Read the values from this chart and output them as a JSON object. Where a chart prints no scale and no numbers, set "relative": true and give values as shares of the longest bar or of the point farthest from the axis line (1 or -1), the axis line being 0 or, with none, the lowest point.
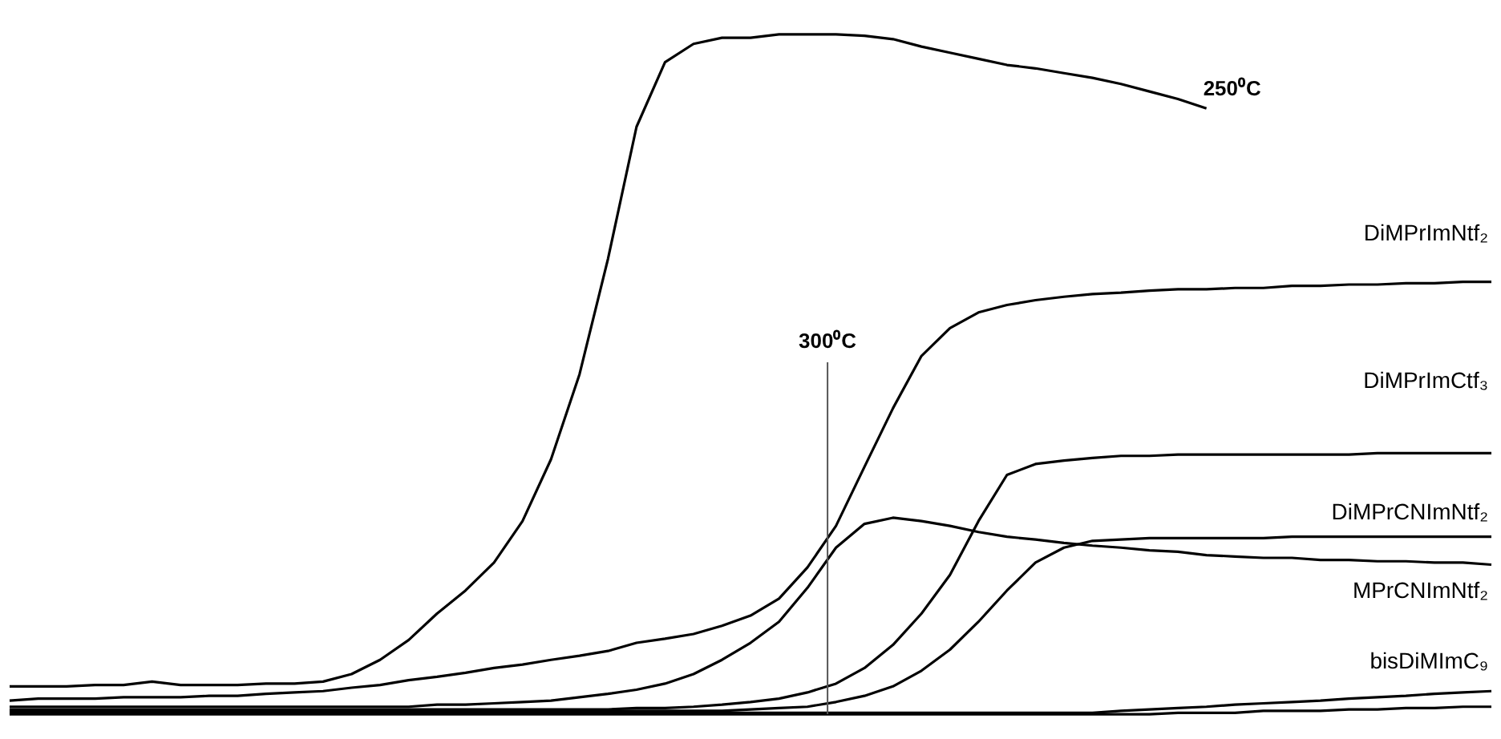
{
  "chart_data": {
    "type": "line",
    "relative": true,
    "categories": [
      null,
      null,
      null,
      null,
      null,
      null,
      null,
      null,
      null,
      null,
      null,
      null,
      null,
      null,
      null,
      null,
      null,
      null,
      null,
      null,
      null,
      null,
      null,
      null,
      null,
      null,
      null,
      null,
      null,
      null,
      null,
      null,
      null,
      null,
      null,
      null,
      null,
      null,
      null,
      null,
      null,
      null,
      null,
      null,
      null,
      null,
      null,
      null,
      null,
      null,
      null,
      null,
      null
    ],
    "series": [
      {
        "color": "#000000",
        "values": [
          0.041,
          0.041,
          0.041,
          0.043,
          0.043,
          0.048,
          0.043,
          0.043,
          0.043,
          0.045,
          0.045,
          0.048,
          0.059,
          0.08,
          0.109,
          0.148,
          0.182,
          0.223,
          0.284,
          0.375,
          0.5,
          0.67,
          0.864,
          0.959,
          0.986,
          0.995,
          0.995,
          1,
          1,
          1,
          0.998,
          0.993,
          0.982,
          0.973,
          0.964,
          0.955,
          0.95,
          0.943,
          0.936,
          0.927,
          0.916,
          0.905,
          0.891,
          null,
          null,
          null,
          null,
          null,
          null,
          null,
          null,
          null,
          null
        ]
      },
      {
        "name": "DiMPrImNtf₂",
        "color": "#000000",
        "values": [
          0.02,
          0.023,
          0.023,
          0.023,
          0.025,
          0.025,
          0.025,
          0.027,
          0.027,
          0.03,
          0.032,
          0.034,
          0.039,
          0.043,
          0.05,
          0.055,
          0.061,
          0.068,
          0.073,
          0.08,
          0.086,
          0.093,
          0.105,
          0.111,
          0.118,
          0.13,
          0.145,
          0.17,
          0.216,
          0.277,
          0.364,
          0.45,
          0.527,
          0.568,
          0.591,
          0.602,
          0.609,
          0.614,
          0.618,
          0.62,
          0.623,
          0.625,
          0.625,
          0.627,
          0.627,
          0.63,
          0.63,
          0.632,
          0.632,
          0.634,
          0.634,
          0.636,
          0.636
        ]
      },
      {
        "name": "DiMPrImCtf₃",
        "color": "#000000",
        "values": [
          0.007,
          0.007,
          0.007,
          0.007,
          0.007,
          0.007,
          0.007,
          0.007,
          0.007,
          0.007,
          0.007,
          0.007,
          0.007,
          0.007,
          0.007,
          0.007,
          0.007,
          0.007,
          0.007,
          0.007,
          0.007,
          0.007,
          0.009,
          0.009,
          0.011,
          0.014,
          0.018,
          0.023,
          0.032,
          0.045,
          0.068,
          0.102,
          0.148,
          0.205,
          0.284,
          0.352,
          0.368,
          0.373,
          0.377,
          0.38,
          0.38,
          0.382,
          0.382,
          0.382,
          0.382,
          0.382,
          0.382,
          0.382,
          0.384,
          0.384,
          0.384,
          0.384,
          0.384
        ]
      },
      {
        "name": "DiMPrCNImNtf₂",
        "color": "#000000",
        "values": [
          0.005,
          0.005,
          0.005,
          0.005,
          0.005,
          0.005,
          0.005,
          0.005,
          0.005,
          0.005,
          0.005,
          0.005,
          0.005,
          0.005,
          0.005,
          0.005,
          0.005,
          0.005,
          0.005,
          0.005,
          0.005,
          0.005,
          0.005,
          0.005,
          0.005,
          0.005,
          0.007,
          0.009,
          0.011,
          0.018,
          0.027,
          0.041,
          0.064,
          0.095,
          0.136,
          0.182,
          0.223,
          0.245,
          0.255,
          0.257,
          0.259,
          0.259,
          0.259,
          0.259,
          0.259,
          0.261,
          0.261,
          0.261,
          0.261,
          0.261,
          0.261,
          0.261,
          0.261
        ]
      },
      {
        "name": "MPrCNImNtf₂",
        "color": "#000000",
        "values": [
          0.011,
          0.011,
          0.011,
          0.011,
          0.011,
          0.011,
          0.011,
          0.011,
          0.011,
          0.011,
          0.011,
          0.011,
          0.011,
          0.011,
          0.011,
          0.014,
          0.014,
          0.016,
          0.018,
          0.02,
          0.025,
          0.03,
          0.036,
          0.045,
          0.059,
          0.08,
          0.105,
          0.136,
          0.186,
          0.245,
          0.28,
          0.289,
          0.284,
          0.277,
          0.268,
          0.261,
          0.257,
          0.252,
          0.248,
          0.245,
          0.241,
          0.239,
          0.234,
          0.232,
          0.23,
          0.23,
          0.227,
          0.227,
          0.225,
          0.225,
          0.223,
          0.223,
          0.22
        ]
      },
      {
        "name": "bisDiMImC₉",
        "color": "#000000",
        "values": [
          0.002,
          0.002,
          0.002,
          0.002,
          0.002,
          0.002,
          0.002,
          0.002,
          0.002,
          0.002,
          0.002,
          0.002,
          0.002,
          0.002,
          0.002,
          0.002,
          0.002,
          0.002,
          0.002,
          0.002,
          0.002,
          0.002,
          0.002,
          0.002,
          0.002,
          0.002,
          0.002,
          0.002,
          0.002,
          0.002,
          0.002,
          0.002,
          0.002,
          0.002,
          0.002,
          0.002,
          0.002,
          0.002,
          0.002,
          0.005,
          0.007,
          0.009,
          0.011,
          0.014,
          0.016,
          0.018,
          0.02,
          0.023,
          0.025,
          0.027,
          0.03,
          0.032,
          0.034
        ]
      },
      {
        "color": "#000000",
        "values": [
          0,
          0,
          0,
          0,
          0,
          0,
          0,
          0,
          0,
          0,
          0,
          0,
          0,
          0,
          0,
          0,
          0,
          0,
          0,
          0,
          0,
          0,
          0,
          0,
          0,
          0,
          0,
          0,
          0,
          0,
          0,
          0,
          0,
          0,
          0,
          0,
          0,
          0,
          0,
          0,
          0,
          0.002,
          0.002,
          0.002,
          0.005,
          0.005,
          0.005,
          0.007,
          0.007,
          0.009,
          0.009,
          0.011,
          0.011
        ]
      }
    ],
    "annotations": [
      "250⁰C",
      "300⁰C"
    ],
    "marker": "none",
    "line_style": "solid"
  }
}
